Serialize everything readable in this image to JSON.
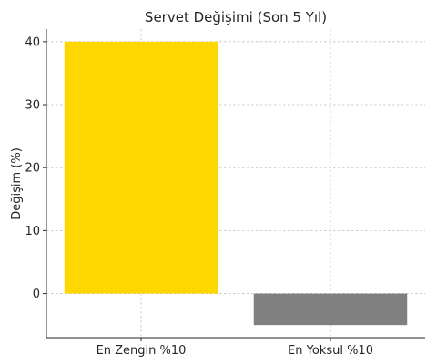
{
  "chart_data": {
    "type": "bar",
    "title": "Servet Değişimi (Son 5 Yıl)",
    "xlabel": "",
    "ylabel": "Değişim (%)",
    "categories": [
      "En Zengin %10",
      "En Yoksul %10"
    ],
    "values": [
      40,
      -5
    ],
    "colors": [
      "#FFD700",
      "#808080"
    ],
    "ylim": [
      -7,
      42
    ],
    "yticks": [
      0,
      10,
      20,
      30,
      40
    ],
    "grid": true
  }
}
